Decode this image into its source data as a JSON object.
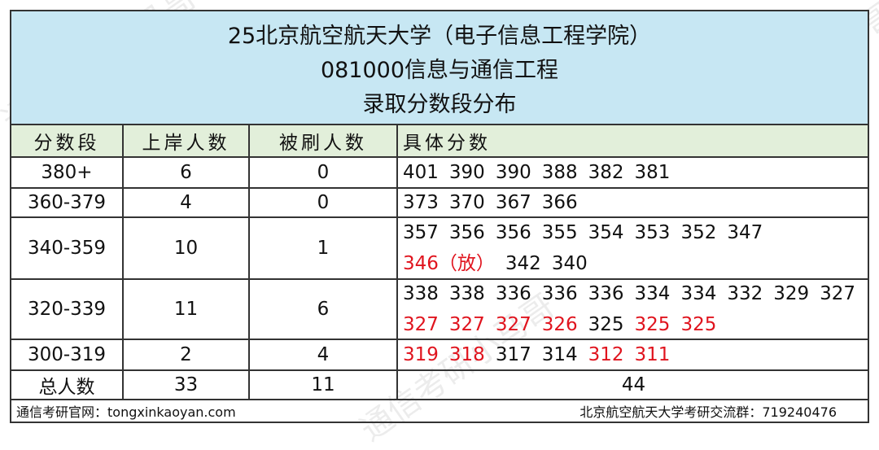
{
  "title": {
    "line1": "25北京航空航天大学（电子信息工程学院）",
    "line2": "081000信息与通信工程",
    "line3": "录取分数段分布"
  },
  "headers": [
    "分数段",
    "上岸人数",
    "被刷人数",
    "具体分数"
  ],
  "rows": [
    {
      "range": "380+",
      "admitted": "6",
      "rejected": "0",
      "scores": [
        {
          "v": "401"
        },
        {
          "v": "390"
        },
        {
          "v": "390"
        },
        {
          "v": "388"
        },
        {
          "v": "382"
        },
        {
          "v": "381"
        }
      ]
    },
    {
      "range": "360-379",
      "admitted": "4",
      "rejected": "0",
      "scores": [
        {
          "v": "373"
        },
        {
          "v": "370"
        },
        {
          "v": "367"
        },
        {
          "v": "366"
        }
      ]
    },
    {
      "range": "340-359",
      "admitted": "10",
      "rejected": "1",
      "scores": [
        {
          "v": "357"
        },
        {
          "v": "356"
        },
        {
          "v": "356"
        },
        {
          "v": "355"
        },
        {
          "v": "354"
        },
        {
          "v": "353"
        },
        {
          "v": "352"
        },
        {
          "v": "347"
        },
        {
          "v": "346（放）",
          "red": true
        },
        {
          "v": "342"
        },
        {
          "v": "340"
        }
      ]
    },
    {
      "range": "320-339",
      "admitted": "11",
      "rejected": "6",
      "scores": [
        {
          "v": "338"
        },
        {
          "v": "338"
        },
        {
          "v": "336"
        },
        {
          "v": "336"
        },
        {
          "v": "336"
        },
        {
          "v": "334"
        },
        {
          "v": "334"
        },
        {
          "v": "332"
        },
        {
          "v": "329"
        },
        {
          "v": "327"
        },
        {
          "v": "327",
          "red": true
        },
        {
          "v": "327",
          "red": true
        },
        {
          "v": "327",
          "red": true
        },
        {
          "v": "326",
          "red": true
        },
        {
          "v": "325"
        },
        {
          "v": "325",
          "red": true
        },
        {
          "v": "325",
          "red": true
        }
      ]
    },
    {
      "range": "300-319",
      "admitted": "2",
      "rejected": "4",
      "scores": [
        {
          "v": "319",
          "red": true
        },
        {
          "v": "318",
          "red": true
        },
        {
          "v": "317"
        },
        {
          "v": "314"
        },
        {
          "v": "312",
          "red": true
        },
        {
          "v": "311",
          "red": true
        }
      ]
    }
  ],
  "total": {
    "label": "总人数",
    "admitted": "33",
    "rejected": "11",
    "all": "44"
  },
  "footer": {
    "left": "通信考研官网：tongxinkaoyan.com",
    "right": "北京航空航天大学考研交流群：719240476"
  },
  "watermark": "通信考研小马哥",
  "colors": {
    "title_bg": "#c7e7f3",
    "header_bg": "#e2efda",
    "rejected_red": "#e0141e"
  }
}
